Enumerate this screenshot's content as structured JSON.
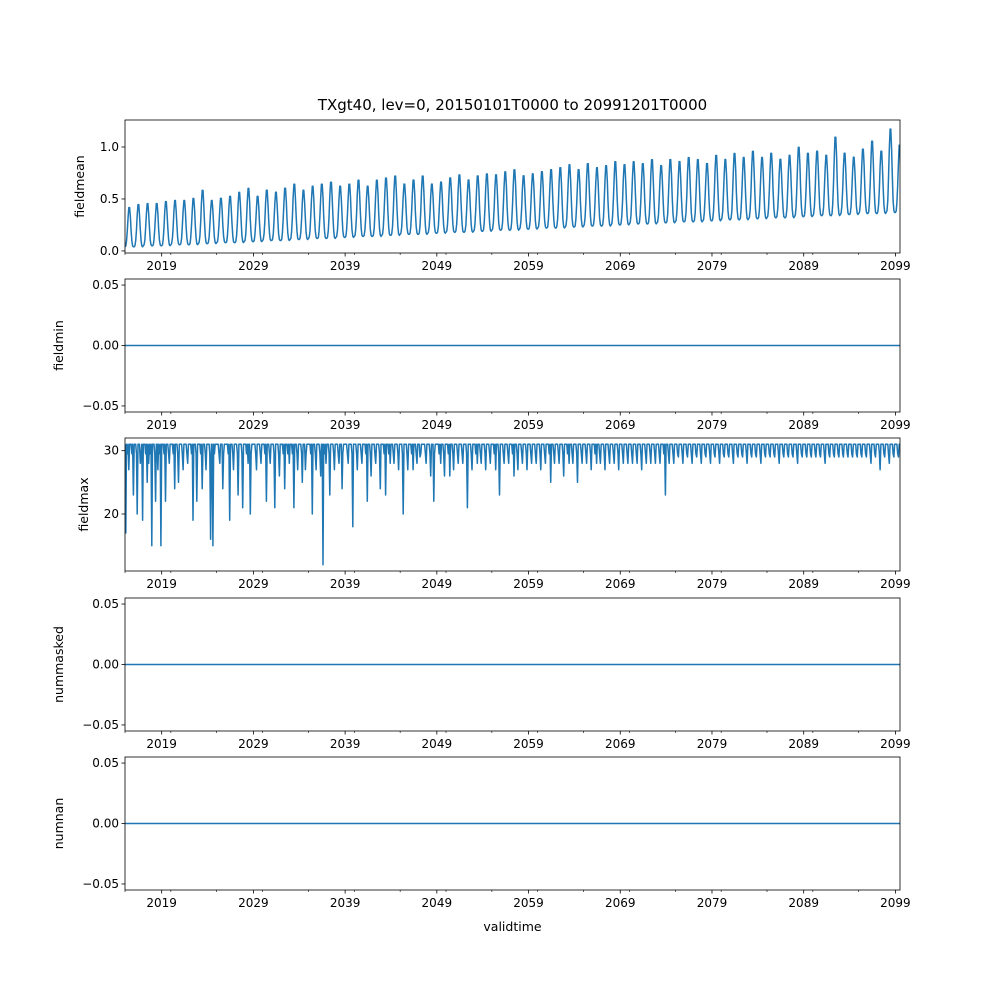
{
  "chart_data": {
    "title": "TXgt40, lev=0, 20150101T0000 to 20991201T0000",
    "type": "line",
    "line_color": "#1f77b4",
    "xlabel": "validtime",
    "x_major_ticks": [
      "2019",
      "2029",
      "2039",
      "2049",
      "2059",
      "2069",
      "2079",
      "2089",
      "2099"
    ],
    "x_minor_ticks_every_years": 5,
    "xlim": [
      2015.0,
      2099.5
    ],
    "x_start": "2015-01",
    "x_end": "2099-12",
    "x_step_months": 1,
    "grid": false,
    "panels": [
      {
        "ylabel": "fieldmean",
        "ylim": [
          -0.02,
          1.26
        ],
        "yticks": [
          0.0,
          0.5,
          1.0
        ],
        "ytick_labels": [
          "0.0",
          "0.5",
          "1.0"
        ],
        "annual_peak": [
          0.43,
          0.46,
          0.47,
          0.47,
          0.49,
          0.5,
          0.5,
          0.52,
          0.6,
          0.5,
          0.52,
          0.54,
          0.58,
          0.62,
          0.54,
          0.6,
          0.58,
          0.62,
          0.66,
          0.6,
          0.64,
          0.66,
          0.68,
          0.64,
          0.66,
          0.7,
          0.64,
          0.7,
          0.72,
          0.74,
          0.66,
          0.7,
          0.74,
          0.66,
          0.68,
          0.72,
          0.75,
          0.7,
          0.74,
          0.76,
          0.75,
          0.78,
          0.8,
          0.74,
          0.76,
          0.78,
          0.8,
          0.82,
          0.85,
          0.8,
          0.86,
          0.82,
          0.84,
          0.88,
          0.85,
          0.88,
          0.86,
          0.9,
          0.84,
          0.9,
          0.88,
          0.92,
          0.9,
          0.86,
          0.94,
          0.9,
          0.96,
          0.92,
          0.98,
          0.92,
          0.96,
          0.9,
          0.94,
          1.02,
          0.96,
          0.98,
          0.94,
          1.12,
          0.96,
          0.92,
          1.0,
          1.08,
          0.98,
          1.2,
          1.04
        ],
        "annual_trough": [
          0.04,
          0.04,
          0.05,
          0.05,
          0.05,
          0.06,
          0.06,
          0.06,
          0.07,
          0.07,
          0.08,
          0.08,
          0.08,
          0.09,
          0.09,
          0.1,
          0.1,
          0.1,
          0.11,
          0.11,
          0.12,
          0.12,
          0.12,
          0.13,
          0.13,
          0.14,
          0.14,
          0.14,
          0.15,
          0.15,
          0.16,
          0.16,
          0.16,
          0.17,
          0.17,
          0.18,
          0.18,
          0.18,
          0.19,
          0.19,
          0.2,
          0.2,
          0.2,
          0.21,
          0.21,
          0.22,
          0.22,
          0.22,
          0.23,
          0.23,
          0.24,
          0.24,
          0.24,
          0.25,
          0.25,
          0.26,
          0.26,
          0.26,
          0.27,
          0.27,
          0.28,
          0.28,
          0.28,
          0.29,
          0.29,
          0.3,
          0.3,
          0.3,
          0.31,
          0.31,
          0.32,
          0.32,
          0.32,
          0.33,
          0.33,
          0.34,
          0.34,
          0.34,
          0.35,
          0.35,
          0.36,
          0.36,
          0.36,
          0.37,
          0.37
        ]
      },
      {
        "ylabel": "fieldmin",
        "ylim": [
          -0.055,
          0.055
        ],
        "yticks": [
          -0.05,
          0.0,
          0.05
        ],
        "ytick_labels": [
          "−0.05",
          "0.00",
          "0.05"
        ],
        "constant_value": 0.0
      },
      {
        "ylabel": "fieldmax",
        "ylim": [
          11,
          32
        ],
        "yticks": [
          20,
          30
        ],
        "ytick_labels": [
          "20",
          "30"
        ],
        "saturation_value": 31,
        "typical_dip_value": 29.5,
        "dips": [
          [
            2015.1,
            17
          ],
          [
            2015.4,
            27
          ],
          [
            2015.9,
            23
          ],
          [
            2016.3,
            20
          ],
          [
            2016.7,
            28
          ],
          [
            2016.9,
            19
          ],
          [
            2017.4,
            25
          ],
          [
            2017.6,
            28
          ],
          [
            2017.9,
            15
          ],
          [
            2018.3,
            22
          ],
          [
            2018.6,
            27
          ],
          [
            2018.9,
            15
          ],
          [
            2019.4,
            22
          ],
          [
            2019.8,
            28
          ],
          [
            2020.4,
            24
          ],
          [
            2020.8,
            25
          ],
          [
            2021.3,
            27
          ],
          [
            2021.8,
            28
          ],
          [
            2022.4,
            19
          ],
          [
            2022.8,
            22
          ],
          [
            2023.4,
            24
          ],
          [
            2023.8,
            27
          ],
          [
            2024.3,
            16
          ],
          [
            2024.6,
            15
          ],
          [
            2025.3,
            28
          ],
          [
            2025.7,
            24
          ],
          [
            2026.4,
            19
          ],
          [
            2026.8,
            27
          ],
          [
            2027.3,
            23
          ],
          [
            2027.8,
            21
          ],
          [
            2028.4,
            28
          ],
          [
            2028.7,
            20
          ],
          [
            2029.3,
            27
          ],
          [
            2029.8,
            28
          ],
          [
            2030.4,
            22
          ],
          [
            2030.8,
            28
          ],
          [
            2031.3,
            21
          ],
          [
            2031.8,
            26
          ],
          [
            2032.4,
            24
          ],
          [
            2032.9,
            28
          ],
          [
            2033.4,
            21
          ],
          [
            2033.8,
            27
          ],
          [
            2034.3,
            25
          ],
          [
            2034.7,
            27
          ],
          [
            2035.4,
            20
          ],
          [
            2035.8,
            27
          ],
          [
            2036.3,
            26
          ],
          [
            2036.6,
            12
          ],
          [
            2036.9,
            28
          ],
          [
            2037.3,
            23
          ],
          [
            2037.8,
            27
          ],
          [
            2038.3,
            28
          ],
          [
            2038.7,
            24
          ],
          [
            2039.3,
            28
          ],
          [
            2039.8,
            18
          ],
          [
            2040.3,
            27
          ],
          [
            2040.8,
            28
          ],
          [
            2041.4,
            22
          ],
          [
            2041.8,
            26
          ],
          [
            2042.3,
            28
          ],
          [
            2042.8,
            24
          ],
          [
            2043.4,
            23
          ],
          [
            2043.9,
            28
          ],
          [
            2044.3,
            28
          ],
          [
            2044.8,
            27
          ],
          [
            2045.3,
            20
          ],
          [
            2045.8,
            27
          ],
          [
            2046.4,
            27
          ],
          [
            2046.8,
            28
          ],
          [
            2047.2,
            29
          ],
          [
            2047.8,
            28
          ],
          [
            2048.3,
            26
          ],
          [
            2048.7,
            22
          ],
          [
            2049.4,
            28
          ],
          [
            2049.8,
            26
          ],
          [
            2050.4,
            26
          ],
          [
            2050.8,
            27
          ],
          [
            2051.3,
            28
          ],
          [
            2051.8,
            28
          ],
          [
            2052.3,
            21
          ],
          [
            2052.8,
            27
          ],
          [
            2053.4,
            28
          ],
          [
            2053.8,
            28
          ],
          [
            2054.3,
            27
          ],
          [
            2054.8,
            28
          ],
          [
            2055.4,
            27
          ],
          [
            2055.8,
            23
          ],
          [
            2056.3,
            28
          ],
          [
            2056.8,
            28
          ],
          [
            2057.4,
            26
          ],
          [
            2057.8,
            27
          ],
          [
            2058.3,
            28
          ],
          [
            2058.8,
            27
          ],
          [
            2059.3,
            28
          ],
          [
            2059.8,
            28
          ],
          [
            2060.3,
            27
          ],
          [
            2060.8,
            28
          ],
          [
            2061.4,
            25
          ],
          [
            2061.8,
            28
          ],
          [
            2062.3,
            28
          ],
          [
            2062.8,
            26
          ],
          [
            2063.4,
            28
          ],
          [
            2063.8,
            28
          ],
          [
            2064.3,
            25
          ],
          [
            2064.8,
            28
          ],
          [
            2065.3,
            28
          ],
          [
            2065.8,
            27
          ],
          [
            2066.4,
            28
          ],
          [
            2066.8,
            28
          ],
          [
            2067.3,
            27
          ],
          [
            2067.8,
            28
          ],
          [
            2068.3,
            28
          ],
          [
            2068.8,
            27
          ],
          [
            2069.3,
            28
          ],
          [
            2069.8,
            28
          ],
          [
            2070.3,
            28
          ],
          [
            2070.8,
            28
          ],
          [
            2071.3,
            27
          ],
          [
            2071.8,
            28
          ],
          [
            2072.3,
            28
          ],
          [
            2072.8,
            28
          ],
          [
            2073.3,
            28
          ],
          [
            2073.9,
            23
          ],
          [
            2074.3,
            28
          ],
          [
            2074.8,
            28
          ],
          [
            2075.3,
            29
          ],
          [
            2075.8,
            28
          ],
          [
            2076.3,
            29
          ],
          [
            2076.8,
            28
          ],
          [
            2077.3,
            29
          ],
          [
            2077.8,
            28
          ],
          [
            2078.3,
            29
          ],
          [
            2078.8,
            28
          ],
          [
            2079.3,
            29
          ],
          [
            2079.8,
            28
          ],
          [
            2080.3,
            29
          ],
          [
            2080.8,
            29
          ],
          [
            2081.3,
            28
          ],
          [
            2081.8,
            29
          ],
          [
            2082.3,
            29
          ],
          [
            2082.8,
            28
          ],
          [
            2083.3,
            29
          ],
          [
            2083.8,
            29
          ],
          [
            2084.3,
            28
          ],
          [
            2084.8,
            29
          ],
          [
            2085.3,
            29
          ],
          [
            2085.8,
            29
          ],
          [
            2086.3,
            28
          ],
          [
            2086.8,
            29
          ],
          [
            2087.3,
            29
          ],
          [
            2087.8,
            29
          ],
          [
            2088.3,
            28
          ],
          [
            2088.8,
            29
          ],
          [
            2089.3,
            29
          ],
          [
            2089.8,
            29
          ],
          [
            2090.3,
            29
          ],
          [
            2090.8,
            29
          ],
          [
            2091.3,
            28
          ],
          [
            2091.8,
            29
          ],
          [
            2092.3,
            29
          ],
          [
            2092.8,
            29
          ],
          [
            2093.3,
            29
          ],
          [
            2093.8,
            29
          ],
          [
            2094.3,
            29
          ],
          [
            2094.8,
            29
          ],
          [
            2095.3,
            29
          ],
          [
            2095.8,
            29
          ],
          [
            2096.3,
            28
          ],
          [
            2096.8,
            29
          ],
          [
            2097.3,
            27
          ],
          [
            2097.8,
            29
          ],
          [
            2098.3,
            28
          ],
          [
            2098.8,
            29
          ],
          [
            2099.3,
            29
          ]
        ]
      },
      {
        "ylabel": "nummasked",
        "ylim": [
          -0.055,
          0.055
        ],
        "yticks": [
          -0.05,
          0.0,
          0.05
        ],
        "ytick_labels": [
          "−0.05",
          "0.00",
          "0.05"
        ],
        "constant_value": 0.0
      },
      {
        "ylabel": "numnan",
        "ylim": [
          -0.055,
          0.055
        ],
        "yticks": [
          -0.05,
          0.0,
          0.05
        ],
        "ytick_labels": [
          "−0.05",
          "0.00",
          "0.05"
        ],
        "constant_value": 0.0
      }
    ]
  }
}
